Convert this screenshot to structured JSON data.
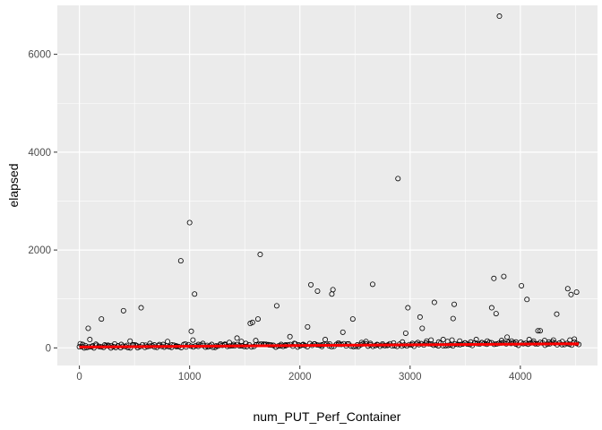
{
  "chart_data": {
    "type": "scatter",
    "title": "",
    "xlabel": "num_PUT_Perf_Container",
    "ylabel": "elapsed",
    "xlim": [
      -200,
      4700
    ],
    "ylim": [
      -360,
      7000
    ],
    "xticks": [
      0,
      1000,
      2000,
      3000,
      4000
    ],
    "yticks": [
      0,
      2000,
      4000,
      6000
    ],
    "grid": true,
    "legend": "none",
    "colors": {
      "panel": "#ebebeb",
      "grid": "#ffffff",
      "points": "#000000",
      "trend": "#ff0000"
    },
    "series": [
      {
        "marker": "open-circle",
        "points": [
          [
            8,
            85
          ],
          [
            30,
            70
          ],
          [
            55,
            45
          ],
          [
            80,
            400
          ],
          [
            95,
            170
          ],
          [
            120,
            40
          ],
          [
            150,
            75
          ],
          [
            180,
            30
          ],
          [
            200,
            590
          ],
          [
            230,
            60
          ],
          [
            260,
            55
          ],
          [
            290,
            45
          ],
          [
            320,
            80
          ],
          [
            350,
            40
          ],
          [
            380,
            70
          ],
          [
            400,
            760
          ],
          [
            430,
            50
          ],
          [
            460,
            140
          ],
          [
            490,
            60
          ],
          [
            520,
            45
          ],
          [
            560,
            820
          ],
          [
            600,
            55
          ],
          [
            640,
            90
          ],
          [
            680,
            60
          ],
          [
            720,
            45
          ],
          [
            760,
            70
          ],
          [
            800,
            130
          ],
          [
            840,
            60
          ],
          [
            880,
            40
          ],
          [
            920,
            1780
          ],
          [
            960,
            80
          ],
          [
            1000,
            2560
          ],
          [
            1015,
            340
          ],
          [
            1030,
            160
          ],
          [
            1045,
            1100
          ],
          [
            1080,
            70
          ],
          [
            1120,
            90
          ],
          [
            1160,
            50
          ],
          [
            1200,
            70
          ],
          [
            1240,
            40
          ],
          [
            1280,
            80
          ],
          [
            1320,
            60
          ],
          [
            1360,
            110
          ],
          [
            1400,
            70
          ],
          [
            1430,
            200
          ],
          [
            1470,
            130
          ],
          [
            1510,
            90
          ],
          [
            1550,
            500
          ],
          [
            1570,
            520
          ],
          [
            1600,
            150
          ],
          [
            1620,
            590
          ],
          [
            1640,
            1910
          ],
          [
            1680,
            70
          ],
          [
            1720,
            60
          ],
          [
            1760,
            50
          ],
          [
            1790,
            860
          ],
          [
            1830,
            70
          ],
          [
            1870,
            60
          ],
          [
            1910,
            230
          ],
          [
            1950,
            90
          ],
          [
            1990,
            60
          ],
          [
            2030,
            70
          ],
          [
            2070,
            430
          ],
          [
            2100,
            1290
          ],
          [
            2130,
            80
          ],
          [
            2160,
            1160
          ],
          [
            2200,
            60
          ],
          [
            2230,
            170
          ],
          [
            2270,
            80
          ],
          [
            2290,
            1100
          ],
          [
            2300,
            1190
          ],
          [
            2350,
            100
          ],
          [
            2390,
            320
          ],
          [
            2430,
            80
          ],
          [
            2480,
            590
          ],
          [
            2520,
            60
          ],
          [
            2560,
            110
          ],
          [
            2600,
            130
          ],
          [
            2640,
            90
          ],
          [
            2660,
            1300
          ],
          [
            2700,
            70
          ],
          [
            2750,
            80
          ],
          [
            2800,
            60
          ],
          [
            2850,
            100
          ],
          [
            2890,
            3460
          ],
          [
            2930,
            120
          ],
          [
            2960,
            300
          ],
          [
            2980,
            820
          ],
          [
            3020,
            90
          ],
          [
            3070,
            110
          ],
          [
            3090,
            630
          ],
          [
            3110,
            400
          ],
          [
            3150,
            140
          ],
          [
            3190,
            160
          ],
          [
            3220,
            930
          ],
          [
            3260,
            120
          ],
          [
            3300,
            170
          ],
          [
            3340,
            130
          ],
          [
            3380,
            160
          ],
          [
            3390,
            600
          ],
          [
            3400,
            890
          ],
          [
            3450,
            140
          ],
          [
            3500,
            100
          ],
          [
            3550,
            120
          ],
          [
            3600,
            170
          ],
          [
            3650,
            110
          ],
          [
            3700,
            140
          ],
          [
            3740,
            820
          ],
          [
            3760,
            1420
          ],
          [
            3780,
            700
          ],
          [
            3810,
            6780
          ],
          [
            3830,
            150
          ],
          [
            3850,
            1460
          ],
          [
            3880,
            220
          ],
          [
            3920,
            140
          ],
          [
            3960,
            120
          ],
          [
            4010,
            1270
          ],
          [
            4060,
            990
          ],
          [
            4080,
            170
          ],
          [
            4120,
            140
          ],
          [
            4160,
            350
          ],
          [
            4180,
            350
          ],
          [
            4220,
            150
          ],
          [
            4260,
            120
          ],
          [
            4300,
            160
          ],
          [
            4330,
            690
          ],
          [
            4380,
            130
          ],
          [
            4430,
            1210
          ],
          [
            4450,
            160
          ],
          [
            4460,
            1090
          ],
          [
            4490,
            180
          ],
          [
            4510,
            1140
          ],
          [
            4530,
            70
          ]
        ]
      }
    ],
    "trend_line": {
      "x": [
        0,
        4530
      ],
      "y": [
        18,
        85
      ]
    }
  }
}
